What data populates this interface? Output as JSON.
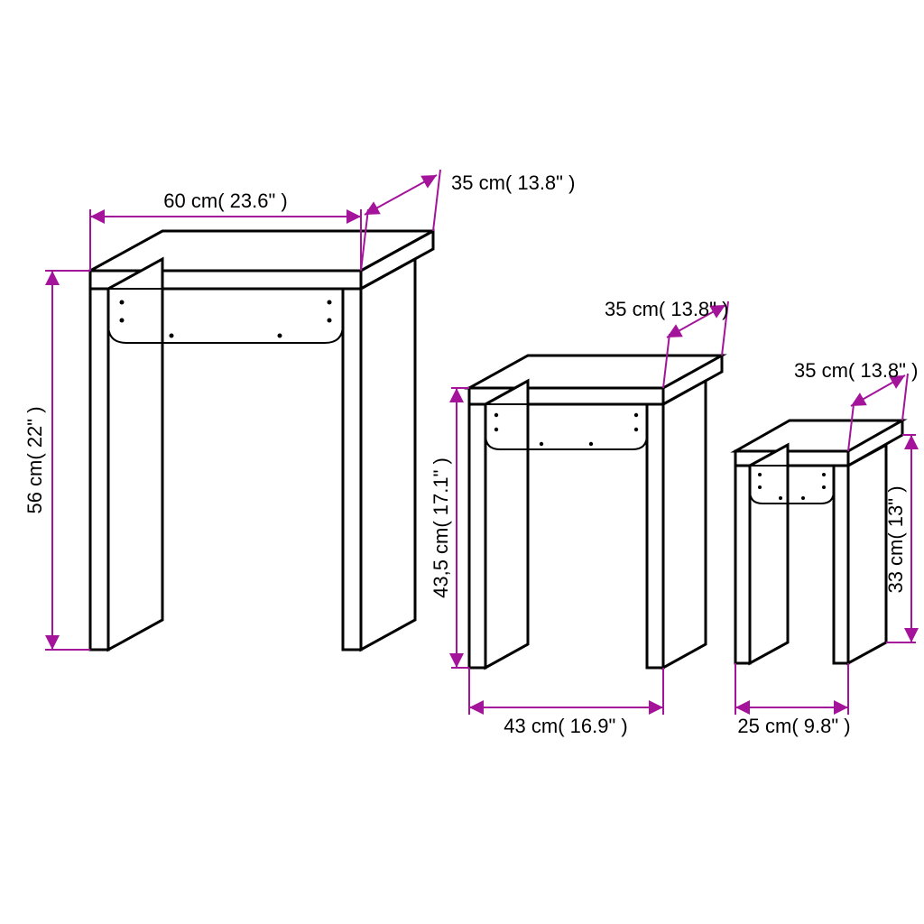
{
  "colors": {
    "accent": "#a3149b",
    "outline": "#000000",
    "bg": "#ffffff"
  },
  "font": {
    "size_pt": 22,
    "weight": 500
  },
  "tables": {
    "large": {
      "width_label": "60 cm( 23.6\" )",
      "depth_label": "35 cm( 13.8\" )",
      "height_label": "56 cm( 22\" )"
    },
    "medium": {
      "width_label": "43 cm( 16.9\" )",
      "depth_label": "35 cm( 13.8\" )",
      "height_label": "43,5 cm( 17.1\" )"
    },
    "small": {
      "width_label": "25 cm( 9.8\" )",
      "depth_label": "35 cm( 13.8\" )",
      "height_label": "33 cm( 13\" )"
    }
  },
  "arrow_size": 8
}
